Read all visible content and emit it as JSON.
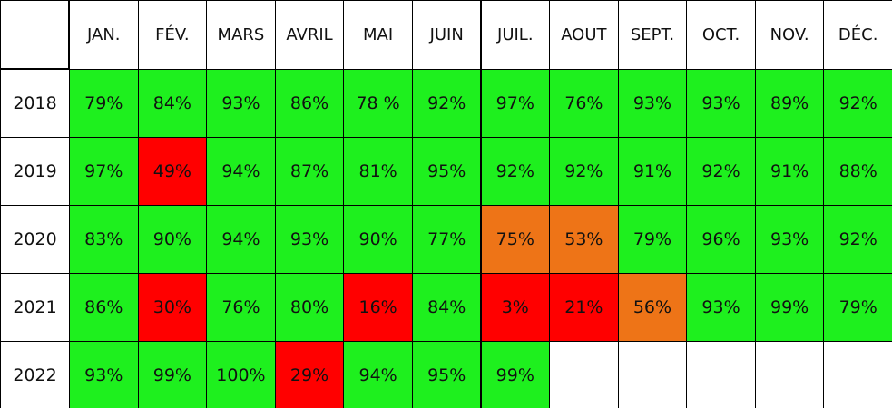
{
  "table": {
    "header": [
      "JAN.",
      "FÉV.",
      "MARS",
      "AVRIL",
      "MAI",
      "JUIN",
      "JUIL.",
      "AOUT",
      "SEPT.",
      "OCT.",
      "NOV.",
      "DÉC."
    ],
    "rows": [
      {
        "year": "2018",
        "cells": [
          "79%",
          "84%",
          "93%",
          "86%",
          "78 %",
          "92%",
          "97%",
          "76%",
          "93%",
          "93%",
          "89%",
          "92%"
        ],
        "colors": [
          "#1ef01e",
          "#1ef01e",
          "#1ef01e",
          "#1ef01e",
          "#1ef01e",
          "#1ef01e",
          "#1ef01e",
          "#1ef01e",
          "#1ef01e",
          "#1ef01e",
          "#1ef01e",
          "#1ef01e"
        ]
      },
      {
        "year": "2019",
        "cells": [
          "97%",
          "49%",
          "94%",
          "87%",
          "81%",
          "95%",
          "92%",
          "92%",
          "91%",
          "92%",
          "91%",
          "88%"
        ],
        "colors": [
          "#1ef01e",
          "#ff0000",
          "#1ef01e",
          "#1ef01e",
          "#1ef01e",
          "#1ef01e",
          "#1ef01e",
          "#1ef01e",
          "#1ef01e",
          "#1ef01e",
          "#1ef01e",
          "#1ef01e"
        ]
      },
      {
        "year": "2020",
        "cells": [
          "83%",
          "90%",
          "94%",
          "93%",
          "90%",
          "77%",
          "75%",
          "53%",
          "79%",
          "96%",
          "93%",
          "92%"
        ],
        "colors": [
          "#1ef01e",
          "#1ef01e",
          "#1ef01e",
          "#1ef01e",
          "#1ef01e",
          "#1ef01e",
          "#ee7417",
          "#ee7417",
          "#1ef01e",
          "#1ef01e",
          "#1ef01e",
          "#1ef01e"
        ]
      },
      {
        "year": "2021",
        "cells": [
          "86%",
          "30%",
          "76%",
          "80%",
          "16%",
          "84%",
          "3%",
          "21%",
          "56%",
          "93%",
          "99%",
          "79%"
        ],
        "colors": [
          "#1ef01e",
          "#ff0000",
          "#1ef01e",
          "#1ef01e",
          "#ff0000",
          "#1ef01e",
          "#ff0000",
          "#ff0000",
          "#ee7417",
          "#1ef01e",
          "#1ef01e",
          "#1ef01e"
        ]
      },
      {
        "year": "2022",
        "cells": [
          "93%",
          "99%",
          "100%",
          "29%",
          "94%",
          "95%",
          "99%"
        ],
        "colors": [
          "#1ef01e",
          "#1ef01e",
          "#1ef01e",
          "#ff0000",
          "#1ef01e",
          "#1ef01e",
          "#1ef01e"
        ]
      }
    ]
  }
}
